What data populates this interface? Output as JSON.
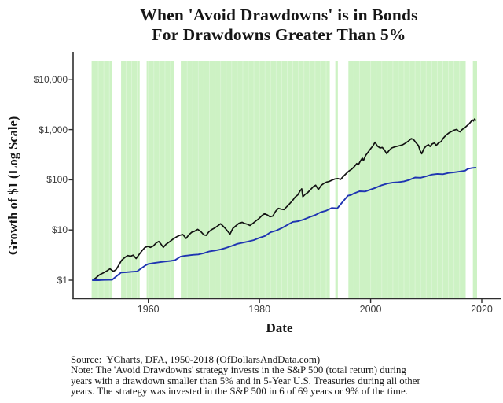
{
  "title": {
    "line1": "When 'Avoid Drawdowns' is in Bonds",
    "line2": "For Drawdowns Greater Than 5%"
  },
  "footer": {
    "lines": [
      "Source:  YCharts, DFA, 1950-2018 (OfDollarsAndData.com)",
      "Note: The 'Avoid Drawdowns' strategy invests in the S&P 500 (total return) during",
      "years with a drawdown smaller than 5% and in 5-Year U.S. Treasuries during all other",
      "years. The strategy was invested in the S&P 500 in 6 of 69 years or 9% of the time."
    ]
  },
  "chart_data": {
    "type": "line",
    "title": "When 'Avoid Drawdowns' is in Bonds For Drawdowns Greater Than 5%",
    "xlabel": "Date",
    "ylabel": "Growth of $1 (Log Scale)",
    "x_domain": [
      1946.4,
      2020.8
    ],
    "y_domain_log": [
      0.42,
      33000
    ],
    "grid": false,
    "legend": "none",
    "x_ticks": [
      {
        "label": "1960",
        "value": 1960
      },
      {
        "label": "1980",
        "value": 1980
      },
      {
        "label": "2000",
        "value": 2000
      },
      {
        "label": "2020",
        "value": 2020
      }
    ],
    "y_ticks": [
      {
        "label": "$10,000",
        "value": 10000
      },
      {
        "label": "$1,000",
        "value": 1000
      },
      {
        "label": "$100",
        "value": 100
      },
      {
        "label": "$10",
        "value": 10
      },
      {
        "label": "$1",
        "value": 1
      }
    ],
    "colors": {
      "bond_band": "#cdf2c4",
      "band_divider": "rgba(255,255,255,0.28)",
      "sp500_line": "#121212",
      "strategy_line": "#1f35b2",
      "axis": "#2e2e2e"
    },
    "bond_periods": [
      [
        1949.8,
        1953.5
      ],
      [
        1955.1,
        1958.45
      ],
      [
        1959.7,
        1964.7
      ],
      [
        1965.85,
        1992.65
      ],
      [
        1993.65,
        1994.1
      ],
      [
        1996.0,
        2017.1
      ],
      [
        2018.4,
        2019.15
      ]
    ],
    "sp500_invested_gaps": [
      [
        1953.5,
        1955.1
      ],
      [
        1958.45,
        1959.7
      ],
      [
        1964.7,
        1965.85
      ],
      [
        1992.65,
        1993.65
      ],
      [
        1994.1,
        1996.0
      ],
      [
        2017.1,
        2018.4
      ]
    ],
    "series": [
      {
        "name": "sp500_buy_and_hold",
        "color": "#121212",
        "points": [
          [
            1950,
            1.0
          ],
          [
            1950.6,
            1.12
          ],
          [
            1951.2,
            1.28
          ],
          [
            1951.8,
            1.38
          ],
          [
            1952.4,
            1.5
          ],
          [
            1953.1,
            1.68
          ],
          [
            1953.7,
            1.5
          ],
          [
            1954.2,
            1.62
          ],
          [
            1954.7,
            2.0
          ],
          [
            1955.2,
            2.5
          ],
          [
            1955.8,
            2.85
          ],
          [
            1956.3,
            3.1
          ],
          [
            1956.8,
            3.0
          ],
          [
            1957.3,
            3.15
          ],
          [
            1957.8,
            2.7
          ],
          [
            1958.3,
            3.2
          ],
          [
            1958.9,
            3.9
          ],
          [
            1959.4,
            4.5
          ],
          [
            1959.9,
            4.7
          ],
          [
            1960.4,
            4.5
          ],
          [
            1960.9,
            4.8
          ],
          [
            1961.4,
            5.5
          ],
          [
            1961.9,
            5.9
          ],
          [
            1962.3,
            5.2
          ],
          [
            1962.7,
            4.5
          ],
          [
            1963.2,
            5.2
          ],
          [
            1963.8,
            5.8
          ],
          [
            1964.4,
            6.5
          ],
          [
            1965,
            7.2
          ],
          [
            1965.6,
            7.8
          ],
          [
            1966.2,
            8.1
          ],
          [
            1966.8,
            6.8
          ],
          [
            1967.3,
            8.0
          ],
          [
            1967.8,
            9.0
          ],
          [
            1968.3,
            9.4
          ],
          [
            1968.9,
            10.3
          ],
          [
            1969.4,
            9.4
          ],
          [
            1970,
            8.0
          ],
          [
            1970.4,
            7.8
          ],
          [
            1970.9,
            9.2
          ],
          [
            1971.4,
            10.2
          ],
          [
            1971.9,
            10.9
          ],
          [
            1972.4,
            11.9
          ],
          [
            1973,
            13.3
          ],
          [
            1973.4,
            12.1
          ],
          [
            1973.9,
            10.6
          ],
          [
            1974.3,
            9.4
          ],
          [
            1974.7,
            8.3
          ],
          [
            1975.2,
            10.7
          ],
          [
            1975.8,
            12.2
          ],
          [
            1976.3,
            13.6
          ],
          [
            1976.9,
            14.2
          ],
          [
            1977.4,
            13.4
          ],
          [
            1977.9,
            12.9
          ],
          [
            1978.3,
            12.3
          ],
          [
            1978.9,
            13.8
          ],
          [
            1979.4,
            15.3
          ],
          [
            1979.9,
            16.8
          ],
          [
            1980.4,
            19.2
          ],
          [
            1980.9,
            21.0
          ],
          [
            1981.4,
            20.0
          ],
          [
            1981.9,
            18.3
          ],
          [
            1982.4,
            19.0
          ],
          [
            1982.9,
            23.5
          ],
          [
            1983.4,
            27.0
          ],
          [
            1983.9,
            26.0
          ],
          [
            1984.4,
            25.5
          ],
          [
            1984.9,
            29.0
          ],
          [
            1985.4,
            33.0
          ],
          [
            1985.9,
            38.0
          ],
          [
            1986.4,
            45.0
          ],
          [
            1986.9,
            50.0
          ],
          [
            1987.3,
            60.0
          ],
          [
            1987.6,
            66.0
          ],
          [
            1987.8,
            46.0
          ],
          [
            1988.2,
            51.0
          ],
          [
            1988.7,
            56.0
          ],
          [
            1989.2,
            64.0
          ],
          [
            1989.7,
            73.0
          ],
          [
            1990.1,
            78.0
          ],
          [
            1990.6,
            64.0
          ],
          [
            1991.1,
            77.0
          ],
          [
            1991.6,
            85.0
          ],
          [
            1992.1,
            90.0
          ],
          [
            1992.6,
            93.0
          ],
          [
            1993.1,
            99.0
          ],
          [
            1993.6,
            104.0
          ],
          [
            1994.1,
            106.0
          ],
          [
            1994.6,
            102.0
          ],
          [
            1995.1,
            117.0
          ],
          [
            1995.6,
            133.0
          ],
          [
            1996.1,
            150.0
          ],
          [
            1996.6,
            163.0
          ],
          [
            1997.1,
            185.0
          ],
          [
            1997.5,
            210.0
          ],
          [
            1997.8,
            200.0
          ],
          [
            1998.2,
            240.0
          ],
          [
            1998.5,
            270.0
          ],
          [
            1998.7,
            240.0
          ],
          [
            1999.1,
            305.0
          ],
          [
            1999.6,
            360.0
          ],
          [
            2000.1,
            430.0
          ],
          [
            2000.4,
            470.0
          ],
          [
            2000.8,
            560.0
          ],
          [
            2001.2,
            470.0
          ],
          [
            2001.7,
            430.0
          ],
          [
            2002.1,
            440.0
          ],
          [
            2002.5,
            390.0
          ],
          [
            2002.9,
            330.0
          ],
          [
            2003.3,
            380.0
          ],
          [
            2003.8,
            430.0
          ],
          [
            2004.3,
            450.0
          ],
          [
            2004.8,
            465.0
          ],
          [
            2005.3,
            480.0
          ],
          [
            2005.8,
            500.0
          ],
          [
            2006.3,
            540.0
          ],
          [
            2006.8,
            590.0
          ],
          [
            2007.3,
            660.0
          ],
          [
            2007.7,
            640.0
          ],
          [
            2008.1,
            560.0
          ],
          [
            2008.6,
            480.0
          ],
          [
            2008.9,
            380.0
          ],
          [
            2009.2,
            330.0
          ],
          [
            2009.6,
            420.0
          ],
          [
            2010,
            470.0
          ],
          [
            2010.4,
            500.0
          ],
          [
            2010.7,
            460.0
          ],
          [
            2011.1,
            520.0
          ],
          [
            2011.5,
            540.0
          ],
          [
            2011.8,
            480.0
          ],
          [
            2012.2,
            540.0
          ],
          [
            2012.7,
            580.0
          ],
          [
            2013.1,
            680.0
          ],
          [
            2013.6,
            780.0
          ],
          [
            2014.1,
            860.0
          ],
          [
            2014.6,
            920.0
          ],
          [
            2015.1,
            980.0
          ],
          [
            2015.5,
            1010.0
          ],
          [
            2015.8,
            930.0
          ],
          [
            2016.1,
            900.0
          ],
          [
            2016.5,
            1010.0
          ],
          [
            2016.9,
            1080.0
          ],
          [
            2017.3,
            1180.0
          ],
          [
            2017.7,
            1290.0
          ],
          [
            2018,
            1420.0
          ],
          [
            2018.3,
            1560.0
          ],
          [
            2018.5,
            1480.0
          ],
          [
            2018.7,
            1620.0
          ],
          [
            2018.9,
            1540.0
          ]
        ]
      },
      {
        "name": "avoid_drawdowns_strategy",
        "color": "#1f35b2",
        "points": [
          [
            1950,
            1.0
          ],
          [
            1951,
            1.0
          ],
          [
            1952,
            1.01
          ],
          [
            1953,
            1.02
          ],
          [
            1953.5,
            1.02
          ],
          [
            1954.2,
            1.18
          ],
          [
            1955.1,
            1.42
          ],
          [
            1956,
            1.44
          ],
          [
            1957,
            1.47
          ],
          [
            1958,
            1.5
          ],
          [
            1958.5,
            1.65
          ],
          [
            1959.5,
            1.98
          ],
          [
            1960,
            2.1
          ],
          [
            1961,
            2.2
          ],
          [
            1962,
            2.28
          ],
          [
            1963,
            2.35
          ],
          [
            1964,
            2.42
          ],
          [
            1964.8,
            2.5
          ],
          [
            1965.8,
            2.95
          ],
          [
            1966.5,
            3.05
          ],
          [
            1967,
            3.1
          ],
          [
            1968,
            3.2
          ],
          [
            1969,
            3.25
          ],
          [
            1970,
            3.45
          ],
          [
            1971,
            3.75
          ],
          [
            1972,
            3.9
          ],
          [
            1973,
            4.1
          ],
          [
            1974,
            4.4
          ],
          [
            1975,
            4.8
          ],
          [
            1976,
            5.3
          ],
          [
            1977,
            5.6
          ],
          [
            1978,
            5.9
          ],
          [
            1979,
            6.3
          ],
          [
            1980,
            7.0
          ],
          [
            1981,
            7.6
          ],
          [
            1982,
            9.0
          ],
          [
            1983,
            9.7
          ],
          [
            1984,
            10.9
          ],
          [
            1985,
            12.6
          ],
          [
            1986,
            14.5
          ],
          [
            1987,
            15.0
          ],
          [
            1988,
            16.2
          ],
          [
            1989,
            18.0
          ],
          [
            1990,
            19.8
          ],
          [
            1991,
            22.5
          ],
          [
            1992,
            24.2
          ],
          [
            1993,
            27.5
          ],
          [
            1994,
            27.0
          ],
          [
            1995,
            36.5
          ],
          [
            1995.9,
            48.0
          ],
          [
            1996.5,
            50.0
          ],
          [
            1997,
            53.5
          ],
          [
            1998,
            59.0
          ],
          [
            1999,
            58.5
          ],
          [
            2000,
            64.0
          ],
          [
            2001,
            70.0
          ],
          [
            2002,
            78.0
          ],
          [
            2003,
            84.0
          ],
          [
            2004,
            88.0
          ],
          [
            2005,
            89.5
          ],
          [
            2006,
            93.0
          ],
          [
            2007,
            100.0
          ],
          [
            2008,
            111.0
          ],
          [
            2009,
            110.0
          ],
          [
            2010,
            117.0
          ],
          [
            2011,
            127.0
          ],
          [
            2012,
            131.0
          ],
          [
            2013,
            129.0
          ],
          [
            2014,
            137.0
          ],
          [
            2015,
            141.0
          ],
          [
            2016,
            146.0
          ],
          [
            2017,
            152.0
          ],
          [
            2017.5,
            165.0
          ],
          [
            2018.2,
            172.0
          ],
          [
            2018.9,
            175.0
          ]
        ]
      }
    ]
  }
}
